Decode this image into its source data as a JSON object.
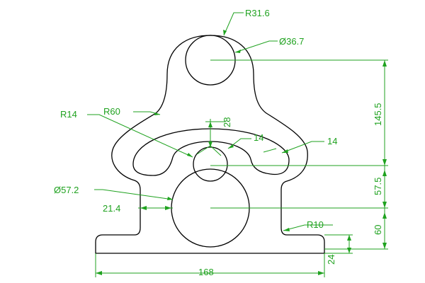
{
  "colors": {
    "background": "#ffffff",
    "part_outline": "#000000",
    "dimension": "#1fa21f"
  },
  "dimensions": {
    "r31_6": "R31.6",
    "dia36_7": "Ø36.7",
    "r14": "R14",
    "r60": "R60",
    "v28": "28",
    "w14_center": "14",
    "w14_right": "14",
    "v145_5": "145.5",
    "dia57_2": "Ø57.2",
    "h21_4": "21.4",
    "v57_5": "57.5",
    "r10": "R10",
    "v60": "60",
    "v24": "24",
    "h168": "168"
  }
}
